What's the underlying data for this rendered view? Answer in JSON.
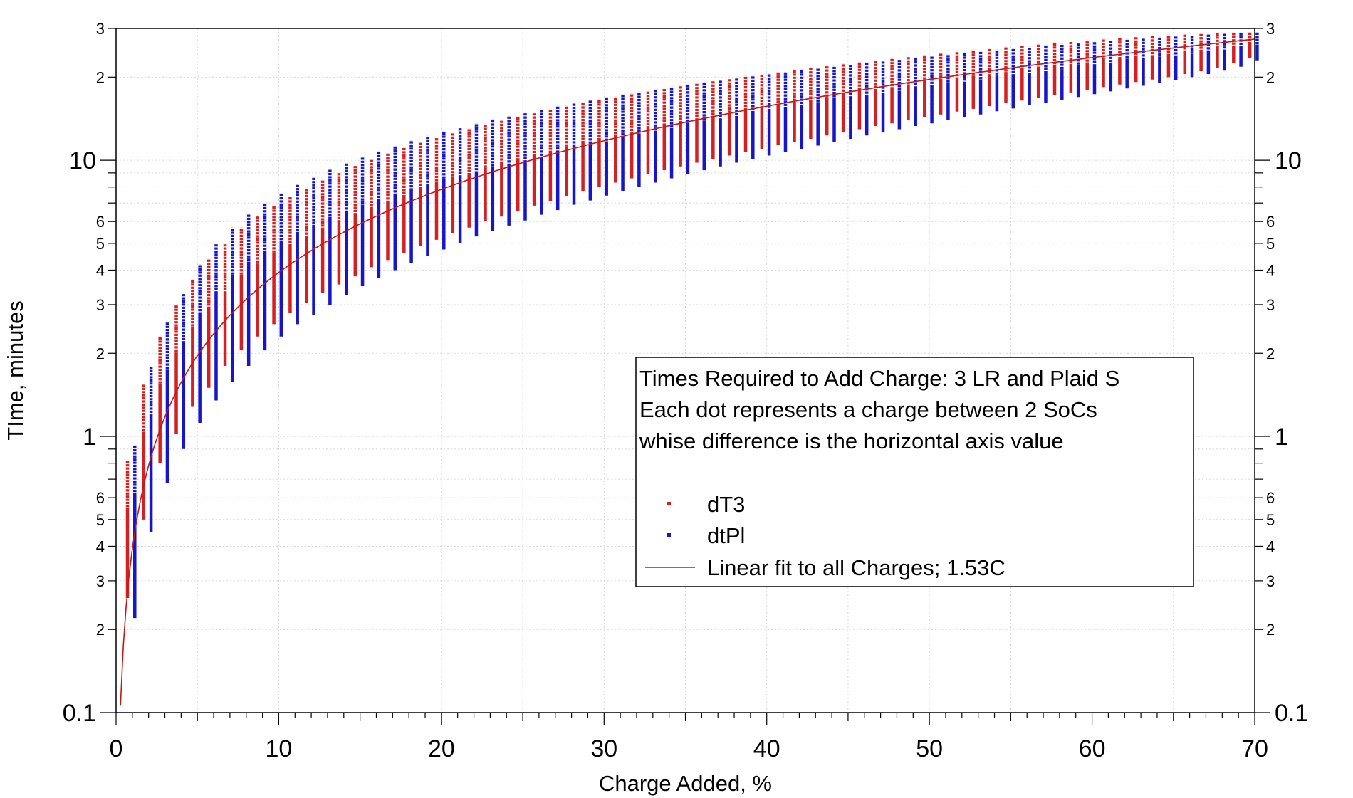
{
  "chart_data": {
    "type": "scatter",
    "xlabel": "Charge Added, %",
    "ylabel": "TIme, minutes",
    "x_scale": "linear",
    "y_scale": "log",
    "xlim": [
      0,
      70
    ],
    "ylim": [
      0.1,
      30
    ],
    "x_ticks": [
      0,
      10,
      20,
      30,
      40,
      50,
      60,
      70
    ],
    "y_major_ticks": [
      {
        "value": 0.1,
        "label": "0.1"
      },
      {
        "value": 1,
        "label": "1"
      },
      {
        "value": 10,
        "label": "10"
      }
    ],
    "y_minor_labeled": [
      {
        "value": 0.2,
        "label": "2"
      },
      {
        "value": 0.3,
        "label": "3"
      },
      {
        "value": 0.4,
        "label": "4"
      },
      {
        "value": 0.5,
        "label": "5"
      },
      {
        "value": 0.6,
        "label": "6"
      },
      {
        "value": 2,
        "label": "2"
      },
      {
        "value": 3,
        "label": "3"
      },
      {
        "value": 4,
        "label": "4"
      },
      {
        "value": 5,
        "label": "5"
      },
      {
        "value": 6,
        "label": "6"
      },
      {
        "value": 20,
        "label": "2"
      },
      {
        "value": 30,
        "label": "3"
      }
    ],
    "grid": true,
    "legend_position": "center-right",
    "annotation_lines": [
      "Times Required to Add Charge: 3 LR and Plaid S",
      "Each dot represents a charge between 2 SoCs",
      "whise difference is the horizontal axis value"
    ],
    "series": [
      {
        "name": "dT3",
        "color": "#d42020",
        "marker": "square dots stacked into vertical bars, one bar per 1% step",
        "x_start": 1,
        "x_step": 1,
        "x_offset": -0.3,
        "ranges": [
          [
            0.26,
            0.82
          ],
          [
            0.5,
            1.55
          ],
          [
            0.8,
            2.3
          ],
          [
            1.02,
            3.0
          ],
          [
            1.28,
            3.7
          ],
          [
            1.5,
            4.4
          ],
          [
            1.8,
            5.0
          ],
          [
            2.05,
            5.7
          ],
          [
            2.3,
            6.3
          ],
          [
            2.55,
            6.85
          ],
          [
            2.8,
            7.4
          ],
          [
            3.05,
            7.95
          ],
          [
            3.3,
            8.5
          ],
          [
            3.55,
            9.05
          ],
          [
            3.8,
            9.6
          ],
          [
            4.1,
            10.1
          ],
          [
            4.35,
            10.65
          ],
          [
            4.6,
            11.15
          ],
          [
            4.9,
            11.65
          ],
          [
            5.15,
            12.1
          ],
          [
            5.45,
            12.6
          ],
          [
            5.7,
            13.05
          ],
          [
            6.0,
            13.55
          ],
          [
            6.25,
            14.0
          ],
          [
            6.55,
            14.4
          ],
          [
            6.85,
            14.9
          ],
          [
            7.1,
            15.3
          ],
          [
            7.4,
            15.75
          ],
          [
            7.7,
            16.2
          ],
          [
            8.0,
            16.6
          ],
          [
            8.3,
            17.0
          ],
          [
            8.6,
            17.45
          ],
          [
            8.9,
            17.85
          ],
          [
            9.2,
            18.25
          ],
          [
            9.5,
            18.65
          ],
          [
            9.8,
            19.05
          ],
          [
            10.1,
            19.45
          ],
          [
            10.4,
            19.8
          ],
          [
            10.7,
            20.2
          ],
          [
            11.0,
            20.55
          ],
          [
            11.35,
            20.95
          ],
          [
            11.65,
            21.3
          ],
          [
            11.95,
            21.7
          ],
          [
            12.3,
            22.05
          ],
          [
            12.6,
            22.4
          ],
          [
            12.95,
            22.75
          ],
          [
            13.3,
            23.1
          ],
          [
            13.6,
            23.45
          ],
          [
            13.95,
            23.8
          ],
          [
            14.3,
            24.15
          ],
          [
            14.65,
            24.5
          ],
          [
            15.0,
            24.8
          ],
          [
            15.35,
            25.15
          ],
          [
            15.7,
            25.45
          ],
          [
            16.1,
            25.8
          ],
          [
            16.45,
            26.1
          ],
          [
            16.8,
            26.4
          ],
          [
            17.2,
            26.7
          ],
          [
            17.6,
            27.0
          ],
          [
            18.0,
            27.3
          ],
          [
            18.4,
            27.55
          ],
          [
            18.8,
            27.85
          ],
          [
            19.2,
            28.1
          ],
          [
            19.6,
            28.3
          ],
          [
            20.0,
            28.5
          ],
          [
            20.5,
            28.7
          ],
          [
            21.0,
            28.85
          ],
          [
            21.6,
            29.0
          ],
          [
            22.5,
            29.1
          ],
          [
            23.5,
            29.2
          ]
        ]
      },
      {
        "name": "dtPl",
        "color": "#1616c8",
        "marker": "square dots stacked into vertical bars, one bar per 1% step",
        "x_start": 1,
        "x_step": 1,
        "x_offset": 0.15,
        "ranges": [
          [
            0.22,
            0.93
          ],
          [
            0.45,
            1.8
          ],
          [
            0.68,
            2.6
          ],
          [
            0.9,
            3.3
          ],
          [
            1.12,
            4.2
          ],
          [
            1.35,
            5.0
          ],
          [
            1.58,
            5.7
          ],
          [
            1.8,
            6.4
          ],
          [
            2.05,
            7.0
          ],
          [
            2.3,
            7.6
          ],
          [
            2.55,
            8.2
          ],
          [
            2.75,
            8.7
          ],
          [
            3.0,
            9.3
          ],
          [
            3.25,
            9.8
          ],
          [
            3.5,
            10.3
          ],
          [
            3.75,
            10.8
          ],
          [
            4.0,
            11.3
          ],
          [
            4.25,
            11.8
          ],
          [
            4.5,
            12.25
          ],
          [
            4.75,
            12.7
          ],
          [
            5.0,
            13.15
          ],
          [
            5.3,
            13.6
          ],
          [
            5.55,
            14.05
          ],
          [
            5.8,
            14.5
          ],
          [
            6.05,
            14.9
          ],
          [
            6.35,
            15.35
          ],
          [
            6.6,
            15.75
          ],
          [
            6.9,
            16.15
          ],
          [
            7.15,
            16.55
          ],
          [
            7.45,
            16.95
          ],
          [
            7.75,
            17.35
          ],
          [
            8.0,
            17.7
          ],
          [
            8.3,
            18.1
          ],
          [
            8.6,
            18.45
          ],
          [
            8.9,
            18.85
          ],
          [
            9.2,
            19.2
          ],
          [
            9.5,
            19.55
          ],
          [
            9.8,
            19.9
          ],
          [
            10.1,
            20.25
          ],
          [
            10.4,
            20.6
          ],
          [
            10.7,
            20.95
          ],
          [
            11.0,
            21.3
          ],
          [
            11.3,
            21.6
          ],
          [
            11.65,
            21.95
          ],
          [
            11.95,
            22.3
          ],
          [
            12.3,
            22.6
          ],
          [
            12.6,
            22.95
          ],
          [
            12.95,
            23.25
          ],
          [
            13.3,
            23.6
          ],
          [
            13.6,
            23.9
          ],
          [
            13.95,
            24.2
          ],
          [
            14.3,
            24.55
          ],
          [
            14.65,
            24.85
          ],
          [
            15.05,
            25.15
          ],
          [
            15.4,
            25.45
          ],
          [
            15.8,
            25.75
          ],
          [
            16.15,
            26.05
          ],
          [
            16.55,
            26.35
          ],
          [
            16.95,
            26.65
          ],
          [
            17.35,
            26.95
          ],
          [
            17.75,
            27.2
          ],
          [
            18.2,
            27.5
          ],
          [
            18.6,
            27.75
          ],
          [
            19.05,
            28.0
          ],
          [
            19.5,
            28.25
          ],
          [
            20.0,
            28.45
          ],
          [
            20.5,
            28.7
          ],
          [
            21.1,
            28.9
          ],
          [
            21.8,
            29.05
          ],
          [
            23.0,
            29.2
          ]
        ]
      },
      {
        "name": "Linear fit to all Charges; 1.53C",
        "color": "#c41818",
        "type": "line",
        "slope_min_per_pct": 0.3922
      }
    ]
  }
}
